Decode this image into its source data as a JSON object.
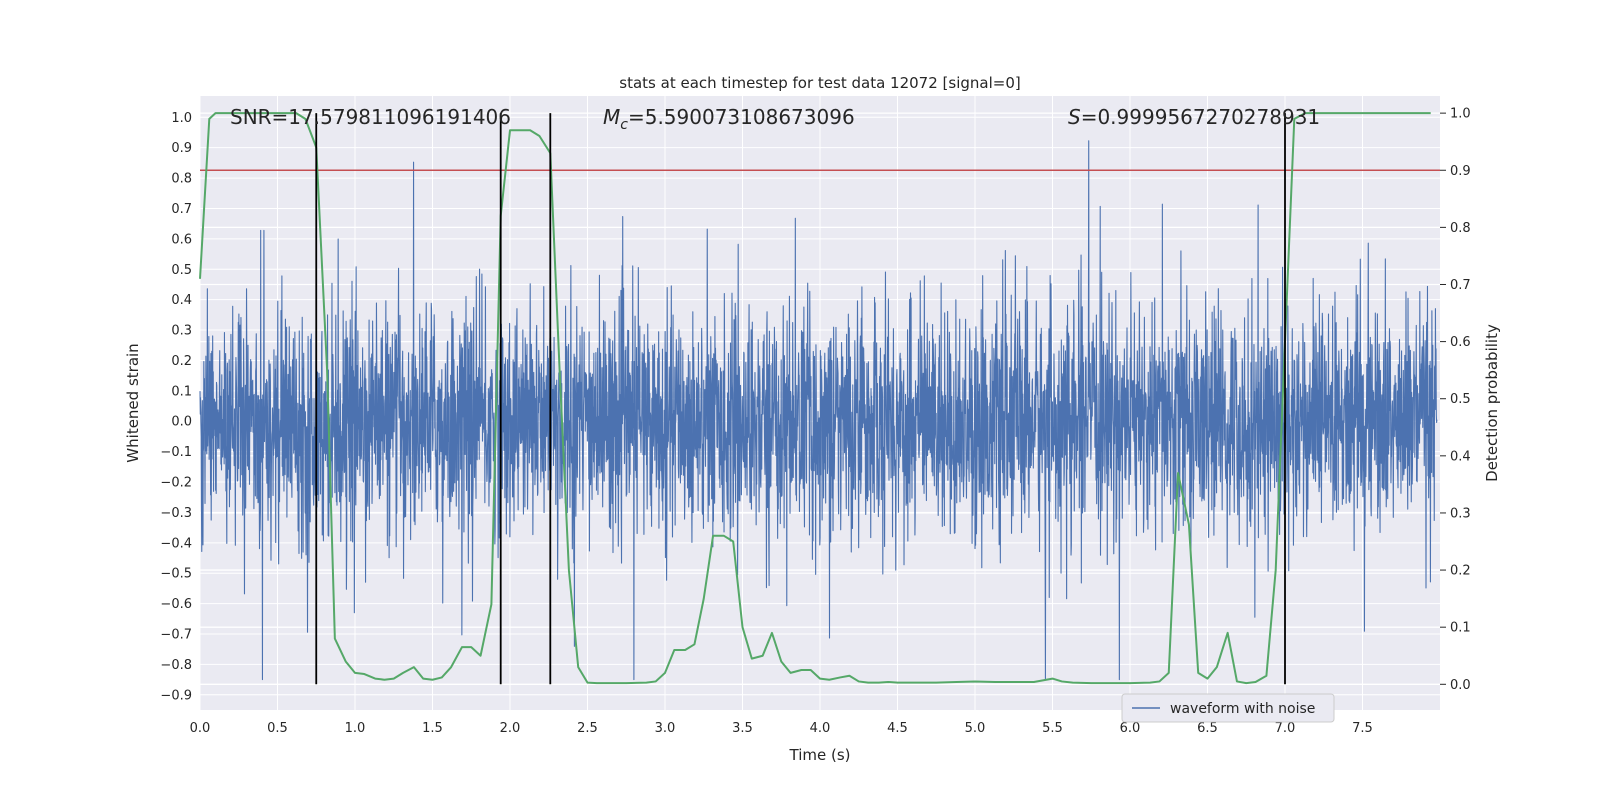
{
  "chart_data": {
    "type": "line",
    "title": "stats at each timestep for test data 12072 [signal=0]",
    "xlabel": "Time (s)",
    "ylabel_left": "Whitened strain",
    "ylabel_right": "Detection probability",
    "xlim": [
      0.0,
      8.0
    ],
    "ylim_left": [
      -0.95,
      1.07
    ],
    "ylim_right": [
      -0.045,
      1.03
    ],
    "x_ticks": [
      "0.0",
      "0.5",
      "1.0",
      "1.5",
      "2.0",
      "2.5",
      "3.0",
      "3.5",
      "4.0",
      "4.5",
      "5.0",
      "5.5",
      "6.0",
      "6.5",
      "7.0",
      "7.5"
    ],
    "y_left_ticks": [
      "-0.9",
      "-0.8",
      "-0.7",
      "-0.6",
      "-0.5",
      "-0.4",
      "-0.3",
      "-0.2",
      "-0.1",
      "0.0",
      "0.1",
      "0.2",
      "0.3",
      "0.4",
      "0.5",
      "0.6",
      "0.7",
      "0.8",
      "0.9",
      "1.0"
    ],
    "y_right_ticks": [
      "0.0",
      "0.1",
      "0.2",
      "0.3",
      "0.4",
      "0.5",
      "0.6",
      "0.7",
      "0.8",
      "0.9",
      "1.0"
    ],
    "grid": true,
    "legend": {
      "placement": "lower-right",
      "entries": [
        "waveform with noise"
      ]
    },
    "annotations": {
      "snr": "SNR=17.579811096191406",
      "mc_symbol": "M",
      "mc_sub": "c",
      "mc_value": "=5.590073108673096",
      "s_symbol": "S",
      "s_value": "=0.9999567270278931"
    },
    "threshold_right": 0.9,
    "vertical_markers_x": [
      0.75,
      1.94,
      2.26,
      7.0
    ],
    "waveform": {
      "name": "waveform with noise",
      "color": "#4c72b0",
      "x_range": [
        0.0,
        7.98
      ],
      "band_typical": [
        -0.32,
        0.32
      ]
    },
    "probability": {
      "color": "#55a868",
      "x": [
        0.0,
        0.06,
        0.1,
        0.2,
        0.35,
        0.5,
        0.62,
        0.68,
        0.75,
        0.82,
        0.87,
        0.94,
        1.0,
        1.06,
        1.13,
        1.19,
        1.25,
        1.31,
        1.38,
        1.44,
        1.5,
        1.56,
        1.62,
        1.69,
        1.75,
        1.81,
        1.88,
        1.94,
        2.0,
        2.06,
        2.13,
        2.19,
        2.26,
        2.32,
        2.38,
        2.44,
        2.5,
        2.56,
        2.63,
        2.75,
        2.88,
        2.94,
        3.0,
        3.06,
        3.13,
        3.19,
        3.25,
        3.31,
        3.38,
        3.44,
        3.5,
        3.56,
        3.63,
        3.69,
        3.75,
        3.81,
        3.88,
        3.94,
        4.0,
        4.06,
        4.13,
        4.19,
        4.25,
        4.31,
        4.38,
        4.44,
        4.5,
        4.63,
        4.75,
        4.88,
        5.0,
        5.13,
        5.25,
        5.38,
        5.5,
        5.56,
        5.63,
        5.75,
        5.88,
        6.0,
        6.13,
        6.19,
        6.25,
        6.31,
        6.38,
        6.44,
        6.5,
        6.56,
        6.63,
        6.69,
        6.75,
        6.81,
        6.88,
        6.94,
        7.0,
        7.06,
        7.13,
        7.19,
        7.25,
        7.5,
        7.75,
        7.94
      ],
      "y": [
        0.71,
        0.99,
        1.0,
        1.0,
        1.0,
        1.0,
        1.0,
        0.99,
        0.94,
        0.55,
        0.08,
        0.04,
        0.02,
        0.018,
        0.01,
        0.008,
        0.01,
        0.02,
        0.03,
        0.01,
        0.008,
        0.012,
        0.03,
        0.065,
        0.065,
        0.05,
        0.14,
        0.82,
        0.97,
        0.97,
        0.97,
        0.96,
        0.93,
        0.55,
        0.2,
        0.03,
        0.003,
        0.002,
        0.002,
        0.002,
        0.003,
        0.005,
        0.02,
        0.06,
        0.06,
        0.07,
        0.15,
        0.26,
        0.26,
        0.25,
        0.1,
        0.045,
        0.05,
        0.09,
        0.04,
        0.02,
        0.025,
        0.025,
        0.01,
        0.008,
        0.012,
        0.015,
        0.005,
        0.003,
        0.003,
        0.004,
        0.003,
        0.003,
        0.003,
        0.004,
        0.005,
        0.004,
        0.004,
        0.004,
        0.01,
        0.005,
        0.003,
        0.002,
        0.002,
        0.002,
        0.003,
        0.005,
        0.02,
        0.37,
        0.28,
        0.02,
        0.01,
        0.03,
        0.09,
        0.005,
        0.002,
        0.004,
        0.015,
        0.2,
        0.6,
        0.99,
        1.0,
        1.0,
        1.0,
        1.0,
        1.0,
        1.0
      ]
    },
    "colors": {
      "plot_background": "#eaeaf2",
      "grid": "#ffffff",
      "threshold": "#c44e52",
      "vertical_markers": "#000000"
    }
  }
}
